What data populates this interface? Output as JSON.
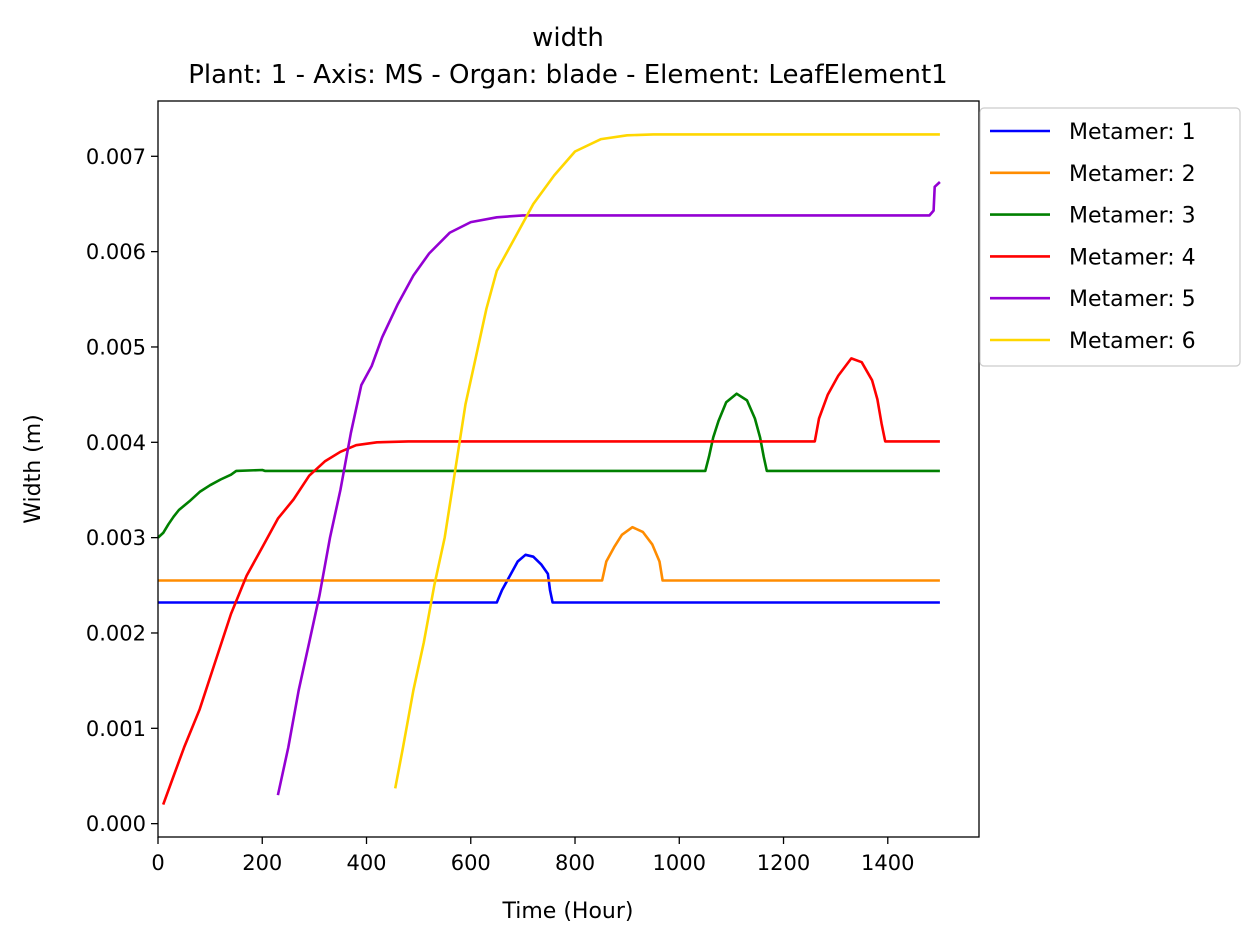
{
  "chart_data": {
    "type": "line",
    "title": "width",
    "subtitle": "Plant: 1 - Axis: MS - Organ: blade - Element: LeafElement1",
    "xlabel": "Time (Hour)",
    "ylabel": "Width (m)",
    "xlim": [
      0,
      1575
    ],
    "ylim": [
      -0.00014,
      0.00758
    ],
    "xticks": [
      0,
      200,
      400,
      600,
      800,
      1000,
      1200,
      1400
    ],
    "xtick_labels": [
      "0",
      "200",
      "400",
      "600",
      "800",
      "1000",
      "1200",
      "1400"
    ],
    "yticks": [
      0,
      0.001,
      0.002,
      0.003,
      0.004,
      0.005,
      0.006,
      0.007
    ],
    "ytick_labels": [
      "0.000",
      "0.001",
      "0.002",
      "0.003",
      "0.004",
      "0.005",
      "0.006",
      "0.007"
    ],
    "grid": false,
    "legend_position": "outside-top-right",
    "series": [
      {
        "name": "Metamer: 1",
        "color": "#0000ff",
        "points": [
          [
            0,
            0.00232
          ],
          [
            650,
            0.00232
          ],
          [
            660,
            0.00245
          ],
          [
            675,
            0.0026
          ],
          [
            690,
            0.00275
          ],
          [
            705,
            0.00282
          ],
          [
            720,
            0.0028
          ],
          [
            735,
            0.00272
          ],
          [
            748,
            0.00262
          ],
          [
            752,
            0.00245
          ],
          [
            757,
            0.00232
          ],
          [
            1500,
            0.00232
          ]
        ]
      },
      {
        "name": "Metamer: 2",
        "color": "#ff8c00",
        "points": [
          [
            0,
            0.00255
          ],
          [
            852,
            0.00255
          ],
          [
            860,
            0.00275
          ],
          [
            875,
            0.0029
          ],
          [
            890,
            0.00303
          ],
          [
            910,
            0.00311
          ],
          [
            930,
            0.00306
          ],
          [
            948,
            0.00293
          ],
          [
            962,
            0.00275
          ],
          [
            968,
            0.00255
          ],
          [
            1500,
            0.00255
          ]
        ]
      },
      {
        "name": "Metamer: 3",
        "color": "#008000",
        "points": [
          [
            0,
            0.003
          ],
          [
            10,
            0.00305
          ],
          [
            20,
            0.00314
          ],
          [
            30,
            0.00322
          ],
          [
            40,
            0.00329
          ],
          [
            60,
            0.00338
          ],
          [
            80,
            0.00348
          ],
          [
            100,
            0.00355
          ],
          [
            120,
            0.00361
          ],
          [
            140,
            0.00366
          ],
          [
            150,
            0.0037
          ],
          [
            200,
            0.00371
          ],
          [
            205,
            0.0037
          ],
          [
            1050,
            0.0037
          ],
          [
            1057,
            0.00385
          ],
          [
            1065,
            0.00405
          ],
          [
            1075,
            0.00422
          ],
          [
            1090,
            0.00442
          ],
          [
            1110,
            0.00451
          ],
          [
            1130,
            0.00444
          ],
          [
            1145,
            0.00425
          ],
          [
            1155,
            0.00405
          ],
          [
            1162,
            0.00385
          ],
          [
            1168,
            0.0037
          ],
          [
            1500,
            0.0037
          ]
        ]
      },
      {
        "name": "Metamer: 4",
        "color": "#ff0000",
        "points": [
          [
            10,
            0.0002
          ],
          [
            30,
            0.0005
          ],
          [
            50,
            0.0008
          ],
          [
            80,
            0.0012
          ],
          [
            110,
            0.0017
          ],
          [
            140,
            0.0022
          ],
          [
            170,
            0.0026
          ],
          [
            200,
            0.0029
          ],
          [
            230,
            0.0032
          ],
          [
            260,
            0.0034
          ],
          [
            290,
            0.00365
          ],
          [
            320,
            0.0038
          ],
          [
            350,
            0.0039
          ],
          [
            380,
            0.00397
          ],
          [
            420,
            0.004
          ],
          [
            480,
            0.00401
          ],
          [
            1260,
            0.00401
          ],
          [
            1268,
            0.00425
          ],
          [
            1285,
            0.0045
          ],
          [
            1305,
            0.0047
          ],
          [
            1330,
            0.00488
          ],
          [
            1350,
            0.00484
          ],
          [
            1370,
            0.00465
          ],
          [
            1380,
            0.00445
          ],
          [
            1388,
            0.0042
          ],
          [
            1395,
            0.00401
          ],
          [
            1500,
            0.00401
          ]
        ]
      },
      {
        "name": "Metamer: 5",
        "color": "#9400d3",
        "points": [
          [
            230,
            0.0003
          ],
          [
            250,
            0.0008
          ],
          [
            270,
            0.0014
          ],
          [
            290,
            0.0019
          ],
          [
            310,
            0.0024
          ],
          [
            330,
            0.003
          ],
          [
            350,
            0.0035
          ],
          [
            370,
            0.0041
          ],
          [
            390,
            0.0046
          ],
          [
            410,
            0.0048
          ],
          [
            430,
            0.0051
          ],
          [
            460,
            0.00545
          ],
          [
            490,
            0.00575
          ],
          [
            520,
            0.00598
          ],
          [
            560,
            0.0062
          ],
          [
            600,
            0.00631
          ],
          [
            650,
            0.00636
          ],
          [
            700,
            0.00638
          ],
          [
            1480,
            0.00638
          ],
          [
            1488,
            0.00643
          ],
          [
            1490,
            0.00668
          ],
          [
            1500,
            0.00673
          ]
        ]
      },
      {
        "name": "Metamer: 6",
        "color": "#ffd700",
        "points": [
          [
            455,
            0.00037
          ],
          [
            470,
            0.0008
          ],
          [
            490,
            0.0014
          ],
          [
            510,
            0.0019
          ],
          [
            530,
            0.0025
          ],
          [
            550,
            0.003
          ],
          [
            570,
            0.0037
          ],
          [
            590,
            0.0044
          ],
          [
            610,
            0.0049
          ],
          [
            630,
            0.0054
          ],
          [
            650,
            0.0058
          ],
          [
            670,
            0.006
          ],
          [
            690,
            0.0062
          ],
          [
            720,
            0.0065
          ],
          [
            760,
            0.0068
          ],
          [
            800,
            0.00705
          ],
          [
            850,
            0.00718
          ],
          [
            900,
            0.00722
          ],
          [
            950,
            0.00723
          ],
          [
            1500,
            0.00723
          ]
        ]
      }
    ]
  }
}
